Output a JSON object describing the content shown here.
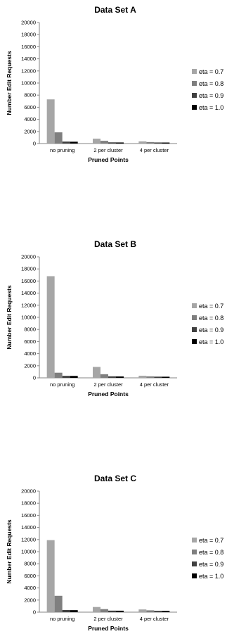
{
  "chart_data": [
    {
      "type": "bar",
      "title": "Data Set A",
      "xlabel": "Pruned Points",
      "ylabel": "Number Edit Requests",
      "ylim": [
        0,
        20000
      ],
      "yticks": [
        "0",
        "2000",
        "4000",
        "6000",
        "8000",
        "10000",
        "12000",
        "14000",
        "16000",
        "18000",
        "20000"
      ],
      "categories": [
        "no pruning",
        "2 per cluster",
        "4 per cluster"
      ],
      "legend_position": "right",
      "series": [
        {
          "name": "eta = 0.7",
          "color": "#a6a6a6",
          "values": [
            7300,
            800,
            350
          ]
        },
        {
          "name": "eta = 0.8",
          "color": "#7f7f7f",
          "values": [
            1850,
            450,
            250
          ]
        },
        {
          "name": "eta = 0.9",
          "color": "#404040",
          "values": [
            320,
            200,
            180
          ]
        },
        {
          "name": "eta = 1.0",
          "color": "#000000",
          "values": [
            300,
            180,
            170
          ]
        }
      ]
    },
    {
      "type": "bar",
      "title": "Data Set B",
      "xlabel": "Pruned Points",
      "ylabel": "Number Edit Requests",
      "ylim": [
        0,
        20000
      ],
      "yticks": [
        "0",
        "2000",
        "4000",
        "6000",
        "8000",
        "10000",
        "12000",
        "14000",
        "16000",
        "18000",
        "20000"
      ],
      "categories": [
        "no pruning",
        "2 per cluster",
        "4 per cluster"
      ],
      "legend_position": "right",
      "series": [
        {
          "name": "eta = 0.7",
          "color": "#a6a6a6",
          "values": [
            16800,
            1800,
            350
          ]
        },
        {
          "name": "eta = 0.8",
          "color": "#7f7f7f",
          "values": [
            850,
            600,
            250
          ]
        },
        {
          "name": "eta = 0.9",
          "color": "#404040",
          "values": [
            330,
            250,
            200
          ]
        },
        {
          "name": "eta = 1.0",
          "color": "#000000",
          "values": [
            320,
            230,
            190
          ]
        }
      ]
    },
    {
      "type": "bar",
      "title": "Data Set C",
      "xlabel": "Pruned Points",
      "ylabel": "Number Edit Requests",
      "ylim": [
        0,
        20000
      ],
      "yticks": [
        "0",
        "2000",
        "4000",
        "6000",
        "8000",
        "10000",
        "12000",
        "14000",
        "16000",
        "18000",
        "20000"
      ],
      "categories": [
        "no pruning",
        "2 per cluster",
        "4 per cluster"
      ],
      "legend_position": "right",
      "series": [
        {
          "name": "eta = 0.7",
          "color": "#a6a6a6",
          "values": [
            11900,
            850,
            450
          ]
        },
        {
          "name": "eta = 0.8",
          "color": "#7f7f7f",
          "values": [
            2700,
            500,
            300
          ]
        },
        {
          "name": "eta = 0.9",
          "color": "#404040",
          "values": [
            350,
            250,
            220
          ]
        },
        {
          "name": "eta = 1.0",
          "color": "#000000",
          "values": [
            330,
            240,
            210
          ]
        }
      ]
    }
  ]
}
